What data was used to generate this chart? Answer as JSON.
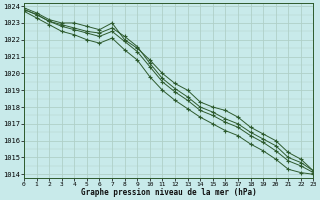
{
  "xlabel": "Graphe pression niveau de la mer (hPa)",
  "background_color": "#c8eaea",
  "grid_major_color": "#b0d0c8",
  "grid_minor_color": "#c0dcd4",
  "line_color": "#2d5a2d",
  "xlim": [
    0,
    23
  ],
  "ylim": [
    1013.8,
    1024.2
  ],
  "yticks": [
    1014,
    1015,
    1016,
    1017,
    1018,
    1019,
    1020,
    1021,
    1022,
    1023,
    1024
  ],
  "xticks": [
    0,
    1,
    2,
    3,
    4,
    5,
    6,
    7,
    8,
    9,
    10,
    11,
    12,
    13,
    14,
    15,
    16,
    17,
    18,
    19,
    20,
    21,
    22,
    23
  ],
  "series": [
    [
      1023.9,
      1023.6,
      1023.2,
      1023.0,
      1023.0,
      1022.8,
      1022.6,
      1023.0,
      1022.0,
      1021.5,
      1020.8,
      1020.0,
      1019.4,
      1019.0,
      1018.3,
      1018.0,
      1017.8,
      1017.4,
      1016.8,
      1016.4,
      1016.0,
      1015.3,
      1014.9,
      1014.2
    ],
    [
      1023.8,
      1023.5,
      1023.1,
      1022.9,
      1022.7,
      1022.5,
      1022.4,
      1022.7,
      1022.2,
      1021.6,
      1020.6,
      1019.7,
      1019.1,
      1018.6,
      1018.0,
      1017.7,
      1017.3,
      1017.0,
      1016.5,
      1016.1,
      1015.7,
      1015.0,
      1014.7,
      1014.2
    ],
    [
      1023.8,
      1023.5,
      1023.1,
      1022.8,
      1022.6,
      1022.4,
      1022.2,
      1022.5,
      1021.9,
      1021.3,
      1020.4,
      1019.5,
      1018.9,
      1018.4,
      1017.8,
      1017.5,
      1017.1,
      1016.8,
      1016.3,
      1015.9,
      1015.4,
      1014.8,
      1014.5,
      1014.1
    ],
    [
      1023.7,
      1023.3,
      1022.9,
      1022.5,
      1022.3,
      1022.0,
      1021.8,
      1022.1,
      1021.4,
      1020.8,
      1019.8,
      1019.0,
      1018.4,
      1017.9,
      1017.4,
      1017.0,
      1016.6,
      1016.3,
      1015.8,
      1015.4,
      1014.9,
      1014.3,
      1014.1,
      1014.0
    ]
  ]
}
